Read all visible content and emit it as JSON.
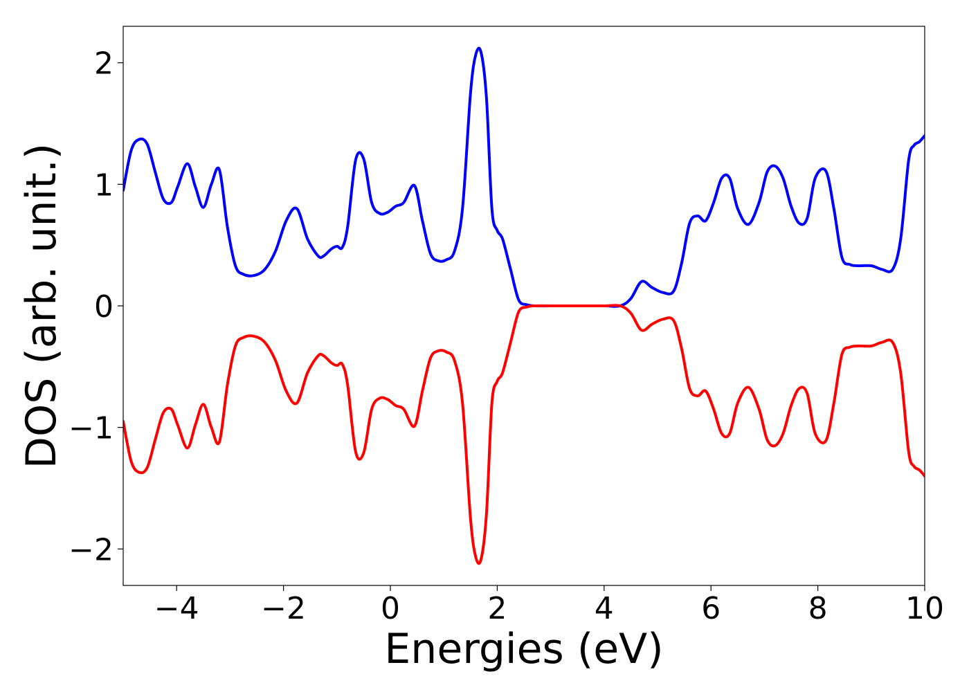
{
  "chart_data": {
    "type": "line",
    "title": "",
    "xlabel": "Energies (eV)",
    "ylabel": "DOS (arb. unit.)",
    "xlim": [
      -5,
      10
    ],
    "ylim": [
      -2.3,
      2.3
    ],
    "xticks": [
      -4,
      -2,
      0,
      2,
      4,
      6,
      8,
      10
    ],
    "xtick_labels": [
      "−4",
      "−2",
      "0",
      "2",
      "4",
      "6",
      "8",
      "10"
    ],
    "yticks": [
      -2,
      -1,
      0,
      1,
      2
    ],
    "ytick_labels": [
      "−2",
      "−1",
      "0",
      "1",
      "2"
    ],
    "grid": false,
    "legend": "none",
    "series": [
      {
        "color": "#0000ff",
        "x": [
          -5.0,
          -4.85,
          -4.7,
          -4.55,
          -4.4,
          -4.25,
          -4.1,
          -3.98,
          -3.8,
          -3.65,
          -3.5,
          -3.35,
          -3.2,
          -3.05,
          -2.9,
          -2.75,
          -2.55,
          -2.35,
          -2.15,
          -1.95,
          -1.75,
          -1.55,
          -1.35,
          -1.25,
          -1.1,
          -1.0,
          -0.9,
          -0.8,
          -0.65,
          -0.5,
          -0.35,
          -0.2,
          -0.05,
          0.1,
          0.25,
          0.45,
          0.6,
          0.75,
          0.9,
          1.05,
          1.2,
          1.35,
          1.5,
          1.6,
          1.7,
          1.8,
          1.9,
          2.0,
          2.1,
          2.25,
          2.4,
          2.55,
          2.7,
          3.0,
          3.5,
          4.0,
          4.3,
          4.5,
          4.7,
          4.9,
          5.1,
          5.3,
          5.45,
          5.6,
          5.75,
          5.9,
          6.05,
          6.2,
          6.35,
          6.5,
          6.7,
          6.9,
          7.05,
          7.2,
          7.35,
          7.5,
          7.65,
          7.8,
          7.95,
          8.15,
          8.3,
          8.45,
          8.6,
          8.75,
          9.0,
          9.2,
          9.4,
          9.55,
          9.7,
          9.8,
          9.9,
          10.0
        ],
        "y": [
          0.95,
          1.28,
          1.37,
          1.33,
          1.1,
          0.88,
          0.85,
          0.98,
          1.17,
          0.98,
          0.81,
          1.0,
          1.12,
          0.65,
          0.33,
          0.26,
          0.25,
          0.3,
          0.45,
          0.7,
          0.8,
          0.55,
          0.41,
          0.41,
          0.47,
          0.49,
          0.48,
          0.65,
          1.2,
          1.21,
          0.85,
          0.76,
          0.77,
          0.82,
          0.85,
          0.99,
          0.7,
          0.43,
          0.37,
          0.38,
          0.45,
          0.8,
          1.75,
          2.07,
          2.08,
          1.7,
          0.8,
          0.62,
          0.55,
          0.3,
          0.05,
          0.01,
          0.0,
          0.0,
          0.0,
          0.0,
          0.0,
          0.06,
          0.2,
          0.15,
          0.11,
          0.12,
          0.35,
          0.68,
          0.74,
          0.7,
          0.85,
          1.05,
          1.05,
          0.8,
          0.67,
          0.85,
          1.1,
          1.15,
          1.05,
          0.82,
          0.68,
          0.72,
          1.05,
          1.11,
          0.8,
          0.4,
          0.34,
          0.33,
          0.33,
          0.3,
          0.3,
          0.55,
          1.2,
          1.32,
          1.35,
          1.4
        ]
      },
      {
        "color": "#ff0000",
        "x": [
          -5.0,
          -4.85,
          -4.7,
          -4.55,
          -4.4,
          -4.25,
          -4.1,
          -3.98,
          -3.8,
          -3.65,
          -3.5,
          -3.35,
          -3.2,
          -3.05,
          -2.9,
          -2.75,
          -2.55,
          -2.35,
          -2.15,
          -1.95,
          -1.75,
          -1.55,
          -1.35,
          -1.25,
          -1.1,
          -1.0,
          -0.9,
          -0.8,
          -0.65,
          -0.5,
          -0.35,
          -0.2,
          -0.05,
          0.1,
          0.25,
          0.45,
          0.6,
          0.75,
          0.9,
          1.05,
          1.2,
          1.35,
          1.5,
          1.6,
          1.7,
          1.8,
          1.9,
          2.0,
          2.1,
          2.25,
          2.4,
          2.55,
          2.7,
          3.0,
          3.5,
          4.0,
          4.3,
          4.5,
          4.7,
          4.9,
          5.1,
          5.3,
          5.45,
          5.6,
          5.75,
          5.9,
          6.05,
          6.2,
          6.35,
          6.5,
          6.7,
          6.9,
          7.05,
          7.2,
          7.35,
          7.5,
          7.65,
          7.8,
          7.95,
          8.15,
          8.3,
          8.45,
          8.6,
          8.75,
          9.0,
          9.2,
          9.4,
          9.55,
          9.7,
          9.8,
          9.9,
          10.0
        ],
        "y": [
          -0.95,
          -1.28,
          -1.37,
          -1.33,
          -1.1,
          -0.88,
          -0.85,
          -0.98,
          -1.17,
          -0.98,
          -0.81,
          -1.0,
          -1.12,
          -0.65,
          -0.33,
          -0.26,
          -0.25,
          -0.3,
          -0.45,
          -0.7,
          -0.8,
          -0.55,
          -0.41,
          -0.41,
          -0.47,
          -0.49,
          -0.48,
          -0.65,
          -1.2,
          -1.21,
          -0.85,
          -0.76,
          -0.77,
          -0.82,
          -0.85,
          -0.99,
          -0.7,
          -0.43,
          -0.37,
          -0.38,
          -0.45,
          -0.8,
          -1.75,
          -2.07,
          -2.08,
          -1.7,
          -0.8,
          -0.62,
          -0.55,
          -0.3,
          -0.05,
          -0.01,
          0.0,
          0.0,
          0.0,
          0.0,
          0.0,
          -0.06,
          -0.2,
          -0.15,
          -0.11,
          -0.12,
          -0.35,
          -0.68,
          -0.74,
          -0.7,
          -0.85,
          -1.05,
          -1.05,
          -0.8,
          -0.67,
          -0.85,
          -1.1,
          -1.15,
          -1.05,
          -0.82,
          -0.68,
          -0.72,
          -1.05,
          -1.11,
          -0.8,
          -0.4,
          -0.34,
          -0.33,
          -0.33,
          -0.3,
          -0.3,
          -0.55,
          -1.2,
          -1.32,
          -1.35,
          -1.4
        ]
      }
    ]
  }
}
